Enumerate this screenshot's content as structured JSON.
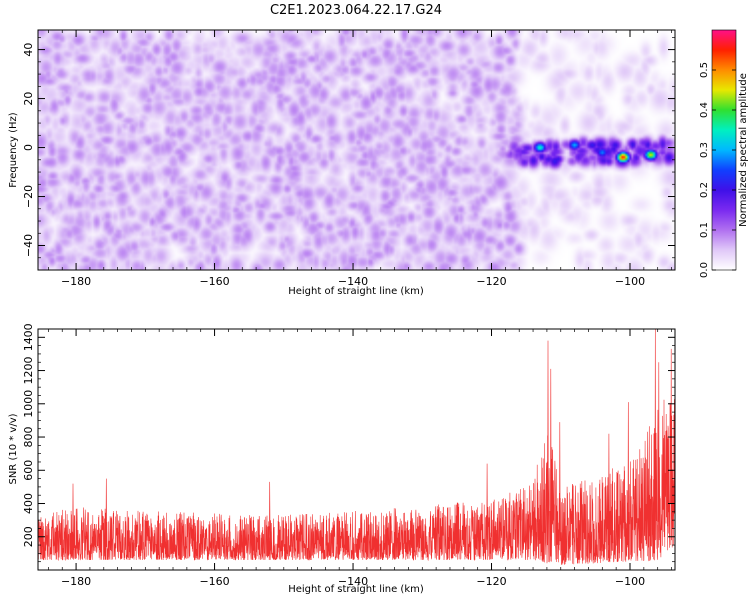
{
  "title": "C2E1.2023.064.22.17.G24",
  "chart_data": [
    {
      "type": "heatmap",
      "xlabel": "Height of straight line (km)",
      "ylabel": "Frequency (Hz)",
      "xlim": [
        -185.5,
        -93.5
      ],
      "ylim": [
        -50,
        48
      ],
      "x_ticks": [
        -180,
        -160,
        -140,
        -120,
        -100
      ],
      "y_ticks": [
        -40,
        -20,
        0,
        20,
        40
      ],
      "colorbar": {
        "label": "Normalized spectral amplitude",
        "range": [
          0.0,
          0.6
        ],
        "ticks": [
          0.0,
          0.1,
          0.2,
          0.3,
          0.4,
          0.5
        ],
        "colors": [
          "#ffffff",
          "#e0c8f8",
          "#b070f0",
          "#7a2af0",
          "#3f10e8",
          "#1040ff",
          "#00b8ff",
          "#00f0c0",
          "#30e030",
          "#e8e800",
          "#ff8c00",
          "#ff2000",
          "#ff1088"
        ]
      },
      "features": {
        "background_noise": {
          "x_range": [
            -185.5,
            -116
          ],
          "y_range": [
            -50,
            48
          ],
          "amplitude_range": [
            0.0,
            0.09
          ]
        },
        "sparse_region": {
          "x_range": [
            -116,
            -93.5
          ],
          "y_range": [
            -50,
            48
          ],
          "amplitude_range": [
            0.0,
            0.05
          ]
        },
        "signal_band": {
          "x_range": [
            -121,
            -94
          ],
          "frequency_center": -2,
          "half_width_hz": 5,
          "peak_amplitude": 0.55,
          "peaks": [
            {
              "x": -113,
              "y": 0,
              "amplitude": 0.35
            },
            {
              "x": -108,
              "y": 1,
              "amplitude": 0.3
            },
            {
              "x": -101,
              "y": -4,
              "amplitude": 0.55
            },
            {
              "x": -97,
              "y": -3,
              "amplitude": 0.45
            },
            {
              "x": -104,
              "y": -2,
              "amplitude": 0.28
            }
          ]
        }
      }
    },
    {
      "type": "line",
      "xlabel": "Height of straight line (km)",
      "ylabel": "SNR (10 * v/v)",
      "xlim": [
        -185.5,
        -93.5
      ],
      "ylim": [
        0,
        1450
      ],
      "x_ticks": [
        -180,
        -160,
        -140,
        -120,
        -100
      ],
      "y_ticks": [
        200,
        400,
        600,
        800,
        1000,
        1200,
        1400
      ],
      "color": "#f03030",
      "envelope": [
        {
          "x": -185.5,
          "low": 60,
          "high": 350
        },
        {
          "x": -180,
          "low": 60,
          "high": 380
        },
        {
          "x": -170,
          "low": 60,
          "high": 360
        },
        {
          "x": -160,
          "low": 60,
          "high": 340
        },
        {
          "x": -150,
          "low": 60,
          "high": 330
        },
        {
          "x": -140,
          "low": 60,
          "high": 360
        },
        {
          "x": -130,
          "low": 60,
          "high": 390
        },
        {
          "x": -120,
          "low": 60,
          "high": 420
        },
        {
          "x": -114,
          "low": 60,
          "high": 520
        },
        {
          "x": -112,
          "low": 40,
          "high": 900
        },
        {
          "x": -110,
          "low": 30,
          "high": 500
        },
        {
          "x": -105,
          "low": 40,
          "high": 560
        },
        {
          "x": -101,
          "low": 50,
          "high": 650
        },
        {
          "x": -98,
          "low": 50,
          "high": 800
        },
        {
          "x": -96,
          "low": 60,
          "high": 1000
        },
        {
          "x": -93.5,
          "low": 150,
          "high": 1100
        }
      ],
      "spikes": [
        {
          "x": -180.5,
          "y": 520
        },
        {
          "x": -175.7,
          "y": 550
        },
        {
          "x": -152.1,
          "y": 530
        },
        {
          "x": -120.7,
          "y": 640
        },
        {
          "x": -111.9,
          "y": 1380
        },
        {
          "x": -111.5,
          "y": 1210
        },
        {
          "x": -110.2,
          "y": 890
        },
        {
          "x": -103.1,
          "y": 820
        },
        {
          "x": -100.3,
          "y": 1010
        },
        {
          "x": -96.4,
          "y": 1450
        },
        {
          "x": -95.9,
          "y": 1250
        },
        {
          "x": -94.1,
          "y": 1330
        }
      ]
    }
  ]
}
